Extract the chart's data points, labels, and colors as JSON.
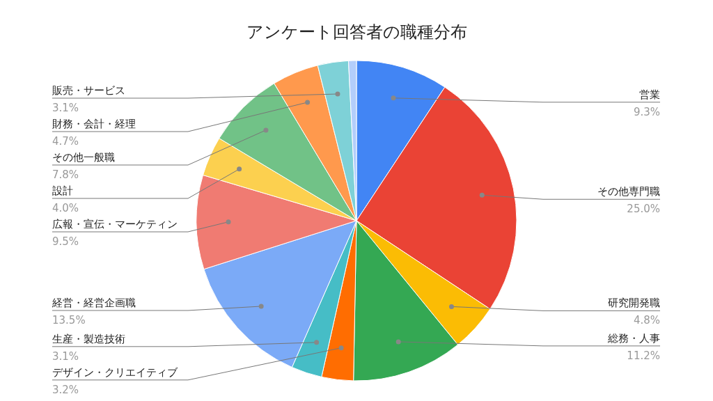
{
  "chart_data": {
    "type": "pie",
    "title": "アンケート回答者の職種分布",
    "categories": [
      "営業",
      "その他専門職",
      "研究開発職",
      "総務・人事",
      "デザイン・クリエイティブ",
      "生産・製造技術",
      "経営・経営企画職",
      "広報・宣伝・マーケティン",
      "設計",
      "その他一般職",
      "財務・会計・経理",
      "販売・サービス",
      null
    ],
    "values": [
      9.3,
      25.0,
      4.8,
      11.2,
      3.2,
      3.1,
      13.5,
      9.5,
      4.0,
      7.8,
      4.7,
      3.1,
      0.8
    ],
    "value_labels": [
      "9.3%",
      "25.0%",
      "4.8%",
      "11.2%",
      "3.2%",
      "3.1%",
      "13.5%",
      "9.5%",
      "4.0%",
      "7.8%",
      "4.7%",
      "3.1%",
      null
    ],
    "colors": [
      "#4285f4",
      "#ea4335",
      "#fbbc04",
      "#34a853",
      "#ff6d01",
      "#46bdc6",
      "#7baaf7",
      "#f07b72",
      "#fcd04f",
      "#71c287",
      "#ff994d",
      "#7ed1d7",
      "#b3cefb"
    ]
  }
}
